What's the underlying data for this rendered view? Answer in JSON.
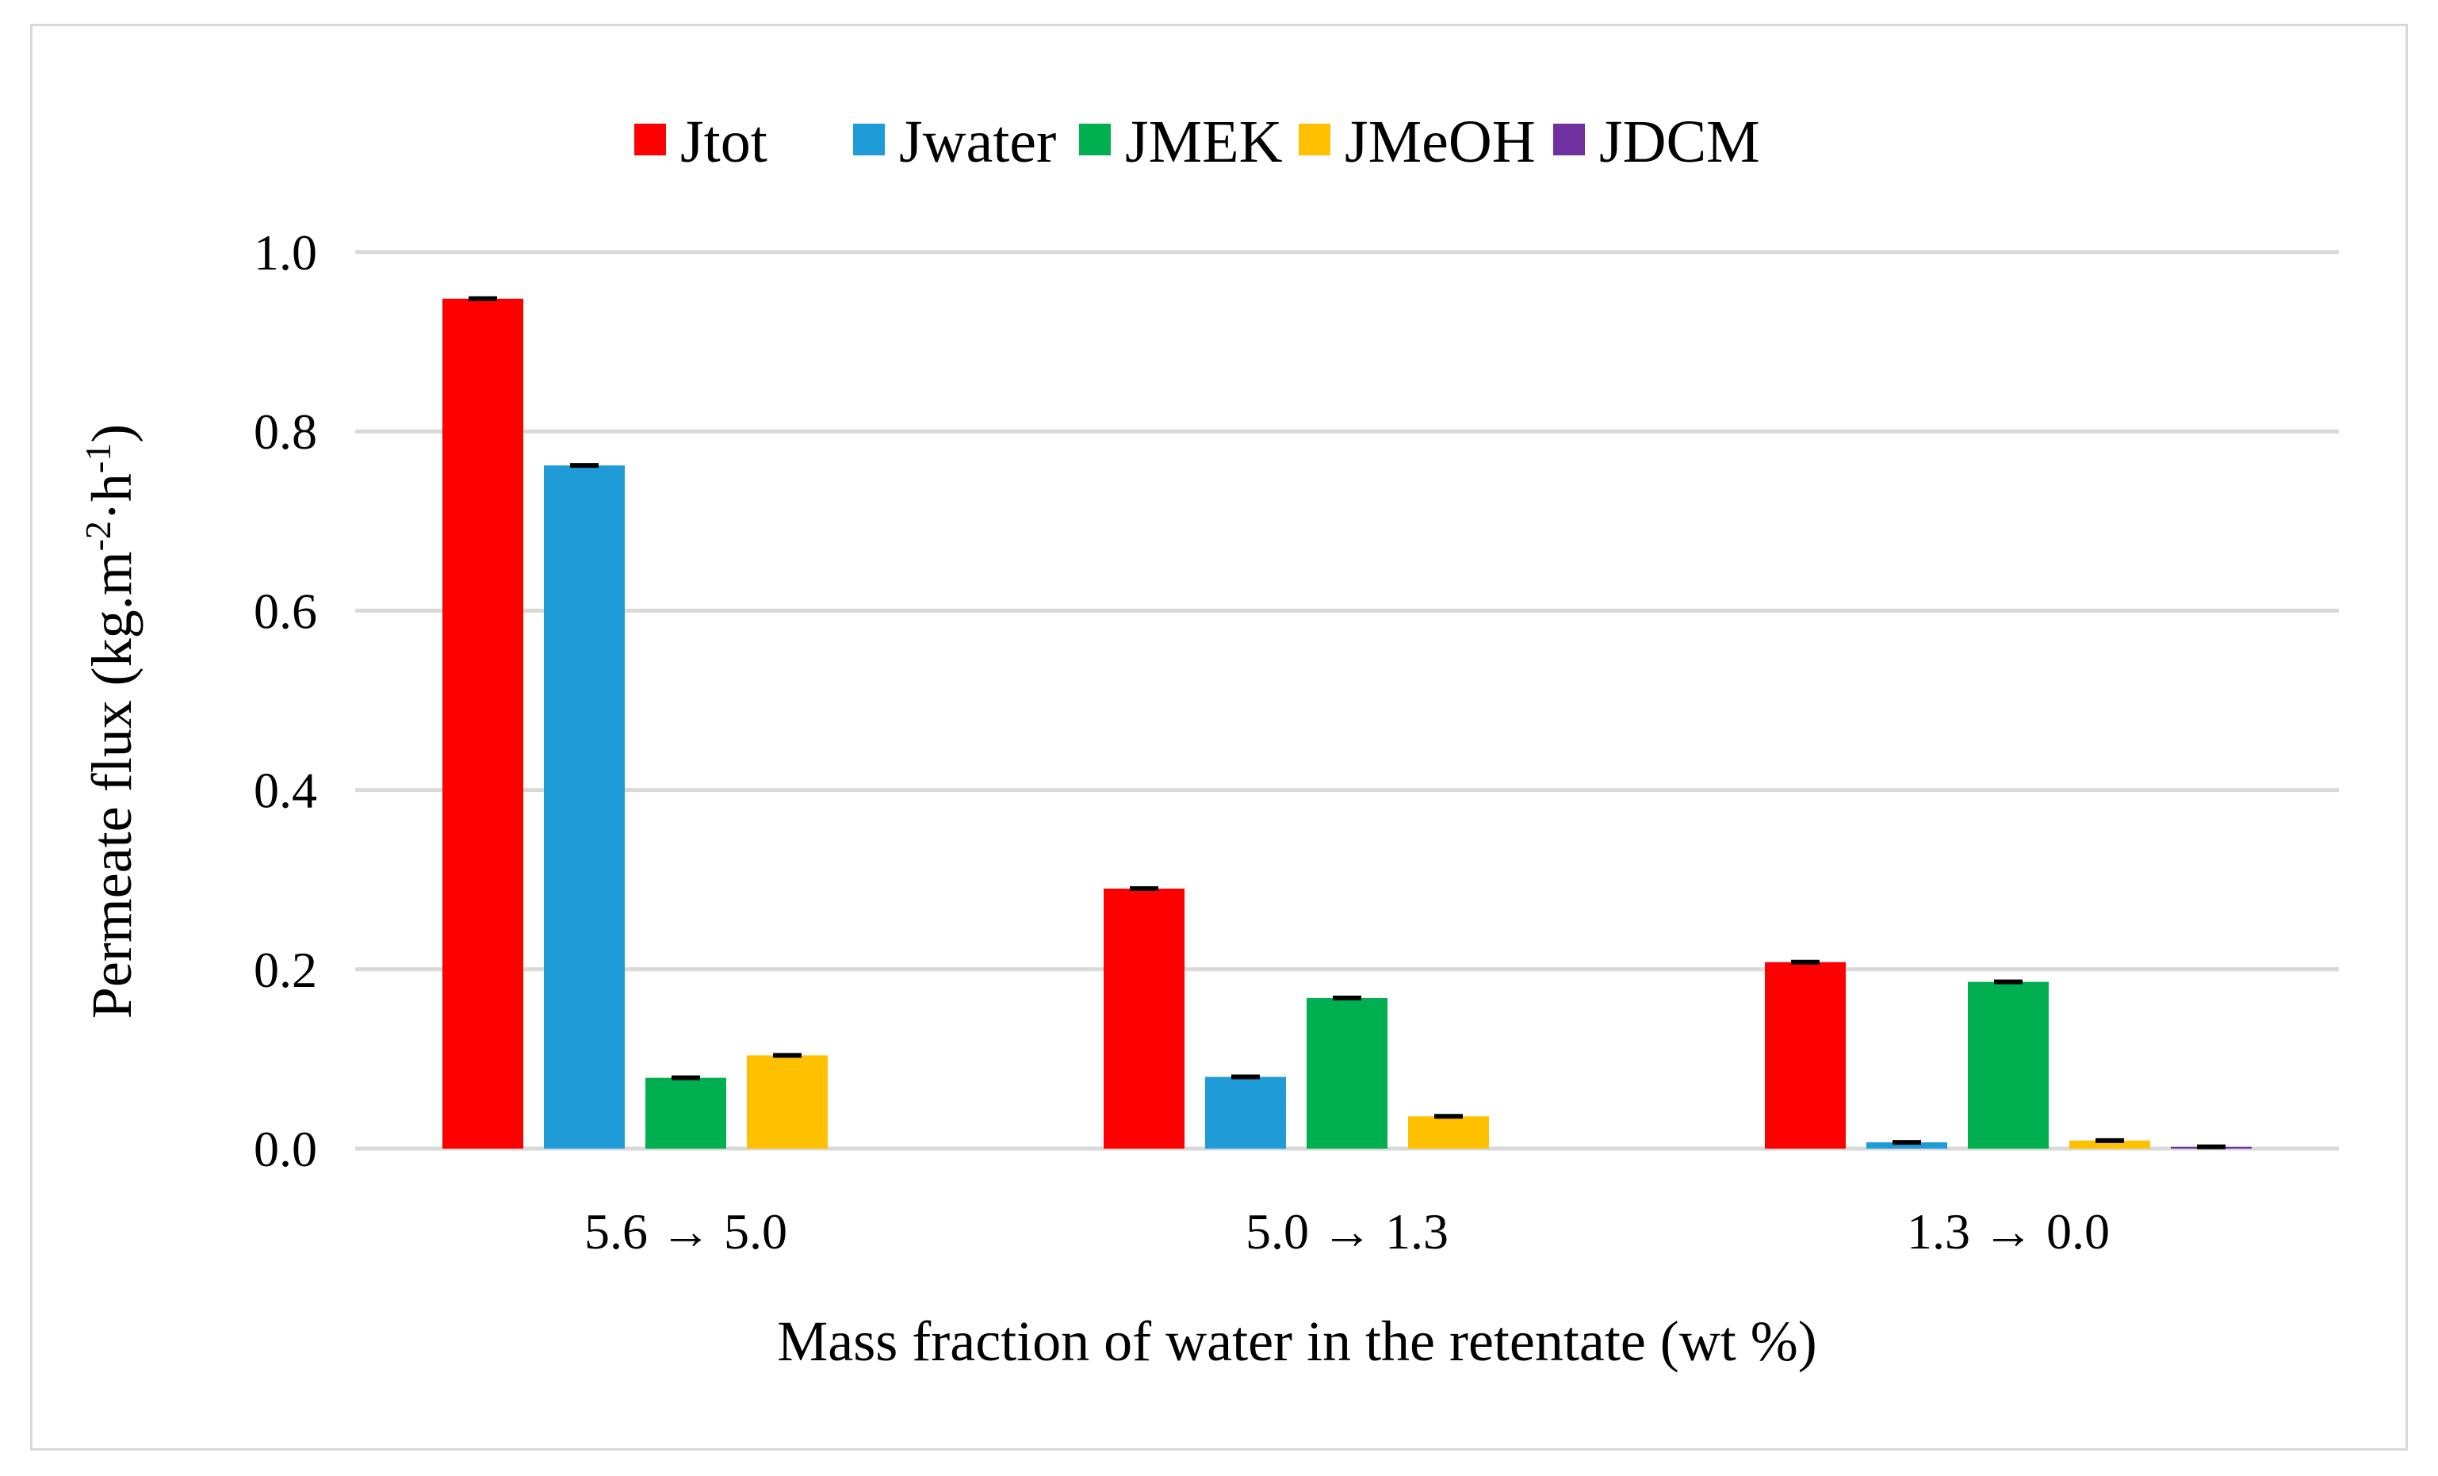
{
  "chart_data": {
    "type": "bar",
    "categories": [
      "5.6 → 5.0",
      "5.0 → 1.3",
      "1.3 → 0.0"
    ],
    "series": [
      {
        "name": "Jtot",
        "color": "#ff0000",
        "values": [
          0.948,
          0.29,
          0.208
        ]
      },
      {
        "name": "Jwater",
        "color": "#1f9bd7",
        "values": [
          0.762,
          0.08,
          0.007
        ]
      },
      {
        "name": "JMEK",
        "color": "#00b050",
        "values": [
          0.079,
          0.168,
          0.186
        ]
      },
      {
        "name": "JMeOH",
        "color": "#ffc000",
        "values": [
          0.104,
          0.036,
          0.009
        ]
      },
      {
        "name": "JDCM",
        "color": "#7030a0",
        "values": [
          0.0,
          0.0,
          0.002
        ]
      }
    ],
    "error_bars": true,
    "xlabel": "Mass fraction of water in the retentate (wt %)",
    "ylabel_main": "Permeate flux (kg.m",
    "ylabel_sup1": "-2",
    "ylabel_mid": "·h",
    "ylabel_sup2": "-1",
    "ylabel_end": ")",
    "ylim": [
      0,
      1.0
    ],
    "yticks": [
      "0.0",
      "0.2",
      "0.4",
      "0.6",
      "0.8",
      "1.0"
    ],
    "ytick_values": [
      0,
      0.2,
      0.4,
      0.6,
      0.8,
      1.0
    ],
    "grid": true,
    "legend_position": "top-center"
  }
}
